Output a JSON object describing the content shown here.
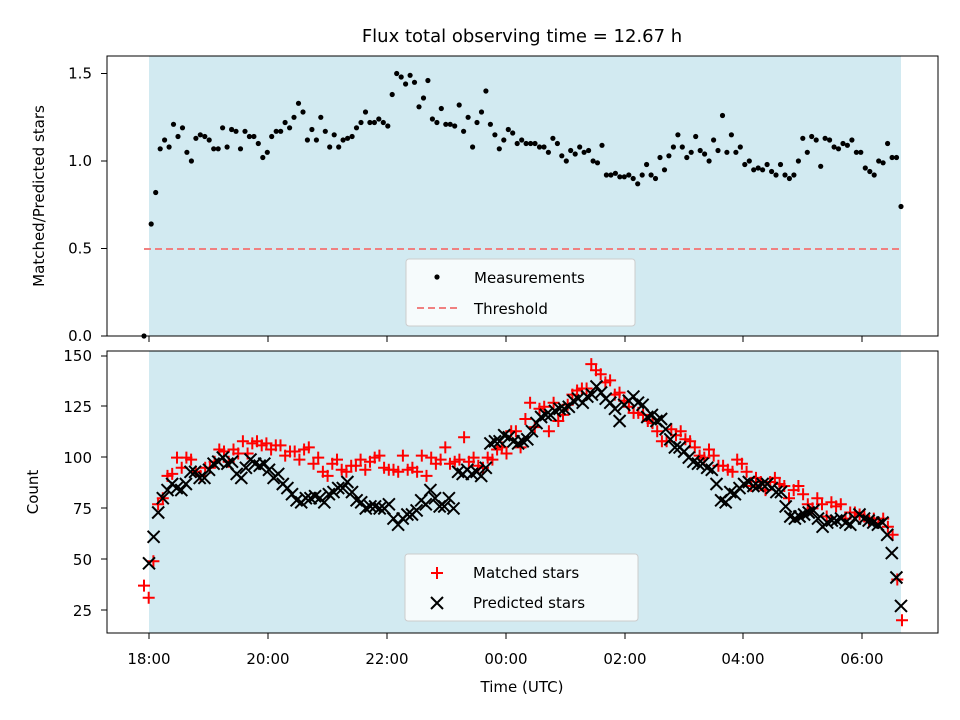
{
  "chart_data": [
    {
      "type": "scatter",
      "title": "Flux total observing time = 12.67 h",
      "xlabel": "",
      "ylabel": "Matched/Predicted stars",
      "ylim": [
        0,
        1.6
      ],
      "yticks": [
        "0.0",
        "0.5",
        "1.0",
        "1.5"
      ],
      "observing_window": [
        "18:00",
        "06:40"
      ],
      "window_color": "#add8e6",
      "legend_position": "lower center",
      "series": [
        {
          "name": "Measurements",
          "marker": "dot",
          "color": "#000000",
          "values": [
            0.0,
            0.64,
            0.82,
            1.07,
            1.12,
            1.08,
            1.21,
            1.14,
            1.19,
            1.05,
            1.0,
            1.13,
            1.15,
            1.14,
            1.12,
            1.07,
            1.07,
            1.19,
            1.08,
            1.18,
            1.17,
            1.07,
            1.17,
            1.14,
            1.14,
            1.1,
            1.02,
            1.05,
            1.14,
            1.17,
            1.17,
            1.22,
            1.19,
            1.25,
            1.33,
            1.28,
            1.12,
            1.18,
            1.12,
            1.25,
            1.17,
            1.08,
            1.15,
            1.08,
            1.12,
            1.13,
            1.14,
            1.19,
            1.22,
            1.28,
            1.22,
            1.22,
            1.24,
            1.22,
            1.2,
            1.38,
            1.5,
            1.48,
            1.44,
            1.49,
            1.45,
            1.31,
            1.36,
            1.46,
            1.24,
            1.22,
            1.3,
            1.21,
            1.21,
            1.2,
            1.32,
            1.17,
            1.25,
            1.08,
            1.22,
            1.28,
            1.4,
            1.21,
            1.15,
            1.07,
            1.12,
            1.18,
            1.16,
            1.1,
            1.12,
            1.1,
            1.1,
            1.1,
            1.08,
            1.08,
            1.05,
            1.13,
            1.1,
            1.03,
            1.0,
            1.06,
            1.04,
            1.08,
            1.05,
            1.06,
            1.0,
            0.99,
            1.09,
            0.92,
            0.92,
            0.93,
            0.91,
            0.91,
            0.92,
            0.9,
            0.87,
            0.92,
            0.98,
            0.92,
            0.9,
            1.02,
            0.95,
            1.03,
            1.08,
            1.15,
            1.08,
            1.02,
            1.05,
            1.14,
            1.06,
            1.04,
            1.0,
            1.12,
            1.06,
            1.26,
            1.05,
            1.15,
            1.05,
            1.08,
            0.98,
            1.0,
            0.95,
            0.96,
            0.95,
            0.98,
            0.94,
            0.92,
            0.98,
            0.92,
            0.9,
            0.92,
            1.0,
            1.13,
            1.05,
            1.14,
            1.12,
            0.97,
            1.13,
            1.12,
            1.08,
            1.07,
            1.1,
            1.09,
            1.12,
            1.05,
            1.05,
            0.96,
            0.94,
            0.92,
            1.0,
            0.99,
            1.1,
            1.02,
            1.02,
            0.74
          ]
        },
        {
          "name": "Threshold",
          "marker": "dashed-line",
          "color": "#f08080",
          "values": [
            0.5,
            0.5
          ]
        }
      ]
    },
    {
      "type": "scatter",
      "title": "",
      "xlabel": "Time (UTC)",
      "ylabel": "Count",
      "ylim": [
        13,
        152
      ],
      "yticks": [
        "25",
        "50",
        "75",
        "100",
        "125",
        "150"
      ],
      "xticks": [
        "18:00",
        "20:00",
        "22:00",
        "00:00",
        "02:00",
        "04:00",
        "06:00"
      ],
      "window_color": "#add8e6",
      "legend_position": "lower center",
      "series": [
        {
          "name": "Matched stars",
          "marker": "plus",
          "color": "#ff0000",
          "values": [
            37,
            31,
            49,
            77,
            80,
            91,
            92,
            100,
            95,
            100,
            99,
            93,
            91,
            95,
            95,
            98,
            104,
            103,
            98,
            104,
            102,
            108,
            102,
            107,
            108,
            106,
            107,
            104,
            106,
            106,
            101,
            103,
            103,
            99,
            104,
            105,
            97,
            100,
            93,
            91,
            97,
            99,
            94,
            93,
            96,
            96,
            99,
            94,
            98,
            100,
            101,
            95,
            94,
            94,
            93,
            101,
            94,
            95,
            93,
            101,
            91,
            100,
            97,
            99,
            105,
            97,
            98,
            99,
            110,
            98,
            100,
            96,
            95,
            100,
            99,
            104,
            105,
            102,
            113,
            113,
            105,
            119,
            127,
            115,
            124,
            125,
            113,
            127,
            118,
            121,
            126,
            131,
            133,
            134,
            134,
            146,
            143,
            141,
            137,
            138,
            131,
            132,
            128,
            125,
            122,
            122,
            121,
            118,
            117,
            113,
            108,
            108,
            114,
            111,
            113,
            109,
            108,
            105,
            101,
            100,
            104,
            101,
            96,
            96,
            94,
            93,
            99,
            97,
            93,
            86,
            90,
            88,
            84,
            88,
            90,
            87,
            86,
            80,
            84,
            86,
            82,
            77,
            75,
            80,
            77,
            71,
            78,
            76,
            77,
            70,
            73,
            73,
            72,
            71,
            69,
            70,
            68,
            70,
            66,
            62,
            40,
            20
          ]
        },
        {
          "name": "Predicted stars",
          "marker": "x",
          "color": "#000000",
          "values": [
            48,
            61,
            73,
            80,
            84,
            87,
            85,
            84,
            87,
            93,
            93,
            90,
            90,
            94,
            97,
            98,
            100,
            97,
            98,
            92,
            90,
            95,
            99,
            97,
            96,
            97,
            94,
            90,
            92,
            87,
            85,
            82,
            79,
            78,
            80,
            80,
            81,
            80,
            78,
            82,
            83,
            85,
            85,
            88,
            83,
            79,
            78,
            75,
            76,
            76,
            75,
            75,
            77,
            70,
            67,
            70,
            72,
            72,
            74,
            79,
            77,
            84,
            80,
            76,
            76,
            80,
            75,
            93,
            92,
            94,
            92,
            93,
            91,
            95,
            107,
            108,
            108,
            111,
            110,
            108,
            107,
            108,
            109,
            113,
            117,
            120,
            121,
            121,
            123,
            124,
            124,
            125,
            128,
            129,
            127,
            130,
            131,
            135,
            132,
            129,
            127,
            124,
            118,
            126,
            128,
            130,
            127,
            126,
            120,
            121,
            118,
            119,
            114,
            109,
            105,
            105,
            103,
            100,
            98,
            97,
            97,
            95,
            94,
            87,
            79,
            78,
            83,
            82,
            85,
            87,
            88,
            86,
            86,
            87,
            87,
            85,
            83,
            83,
            76,
            71,
            70,
            71,
            72,
            73,
            74,
            70,
            66,
            68,
            69,
            69,
            70,
            68,
            67,
            70,
            72,
            70,
            69,
            68,
            67,
            68,
            62,
            53,
            41,
            27
          ]
        }
      ]
    }
  ]
}
